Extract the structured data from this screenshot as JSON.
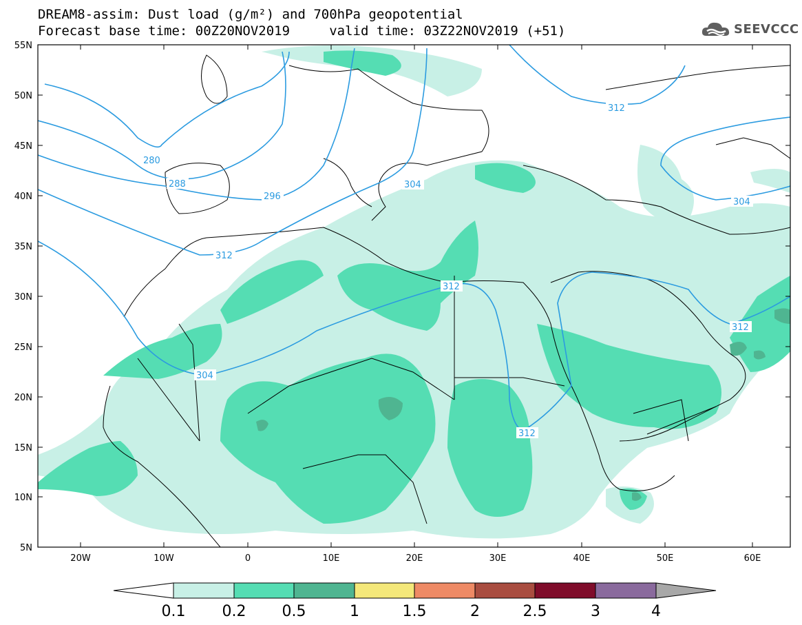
{
  "header": {
    "title_line1": "DREAM8-assim: Dust load (g/m²) and 700hPa geopotential",
    "title_line2": "Forecast base time: 00Z20NOV2019     valid time: 03Z22NOV2019 (+51)"
  },
  "logo": {
    "text": "SEEVCCC",
    "icon": "cloud-logo-icon"
  },
  "axes": {
    "lat_labels": [
      "55N",
      "50N",
      "45N",
      "40N",
      "35N",
      "30N",
      "25N",
      "20N",
      "15N",
      "10N",
      "5N"
    ],
    "lon_labels": [
      "20W",
      "10W",
      "0",
      "10E",
      "20E",
      "30E",
      "40E",
      "50E",
      "60E"
    ]
  },
  "contours": {
    "labels": [
      "280",
      "288",
      "296",
      "304",
      "312",
      "312",
      "304",
      "312",
      "312",
      "312",
      "304"
    ]
  },
  "colorbar": {
    "labels": [
      "0.1",
      "0.2",
      "0.5",
      "1",
      "1.5",
      "2",
      "2.5",
      "3",
      "4"
    ],
    "colors": [
      "#c8f0e6",
      "#55ddb3",
      "#4fb591",
      "#f4e87a",
      "#ee8a65",
      "#a94d40",
      "#7f0c2a",
      "#8a6a9d",
      "#a8a8a8"
    ]
  },
  "colors": {
    "dust_01": "#c8f0e6",
    "dust_02": "#55ddb3",
    "dust_05": "#4fb591",
    "contour": "#2b9be0",
    "borders": "#000000"
  }
}
